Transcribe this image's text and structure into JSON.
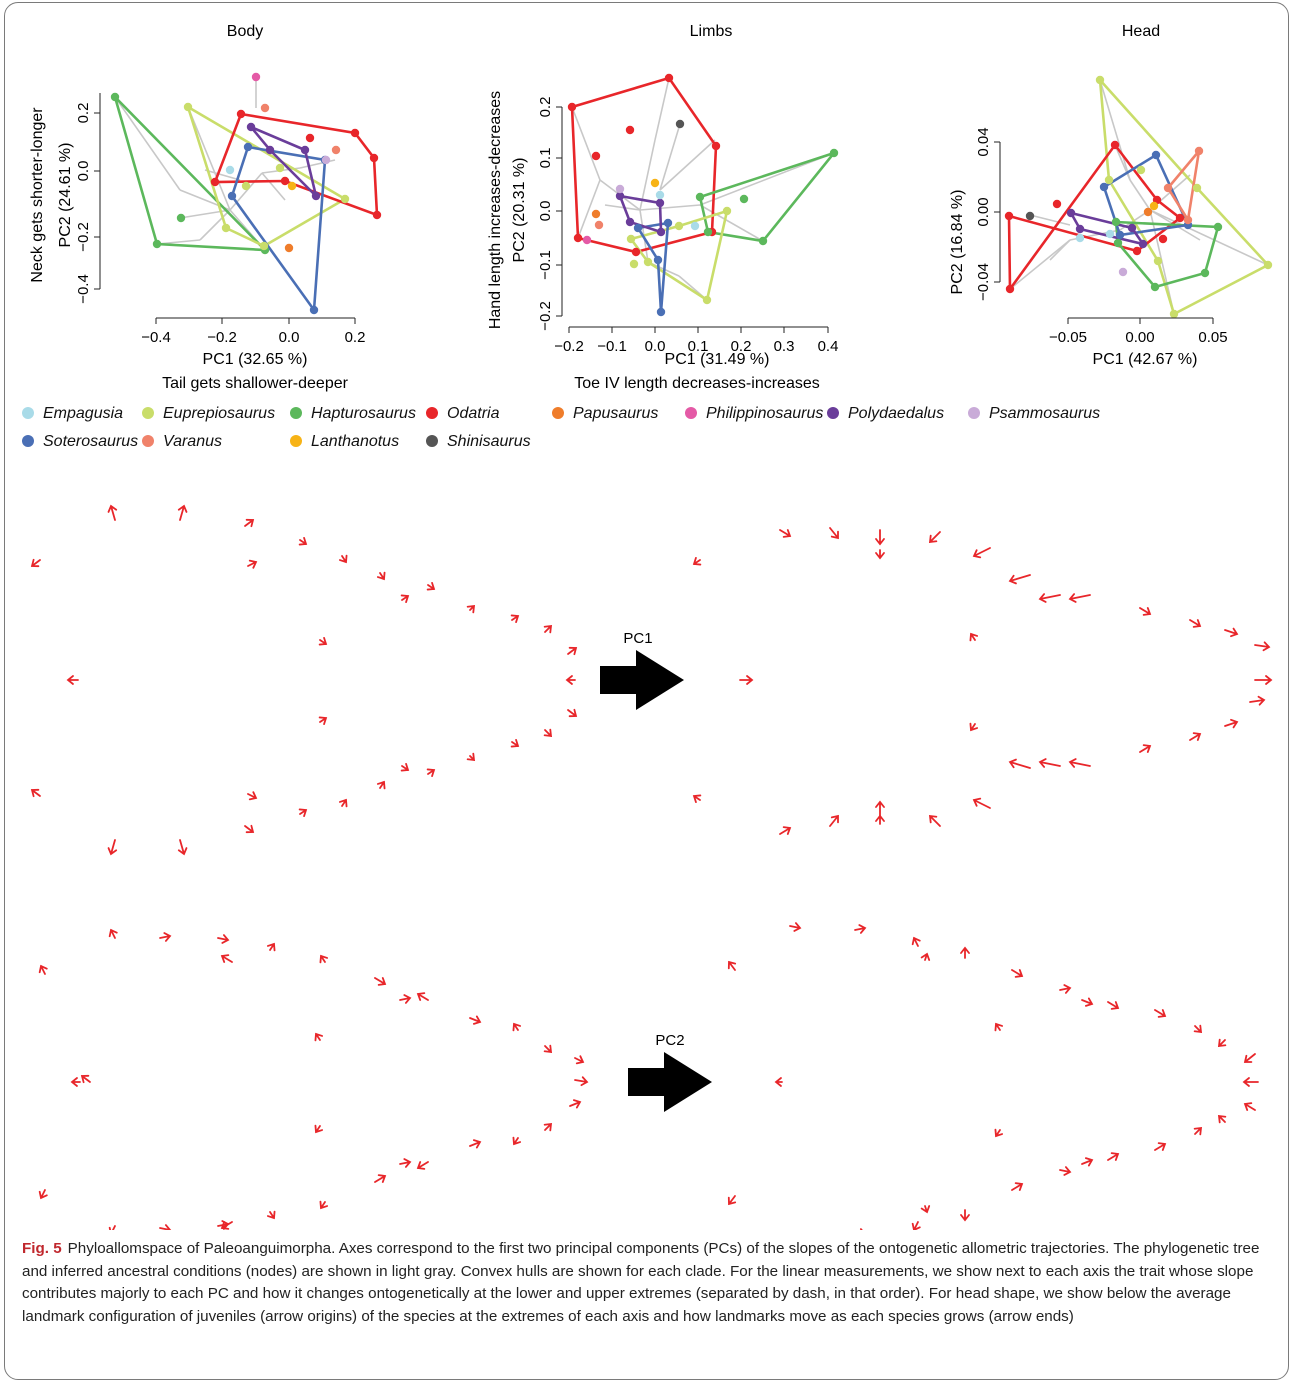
{
  "panels": [
    {
      "title": "Body",
      "xlabel": "PC1 (32.65 %)",
      "xtrait": "Tail gets shallower-deeper",
      "ylabel": "PC2 (24.61 %)",
      "ytrait": "Neck gets shorter-longer",
      "xticks": [
        "−0.4",
        "−0.2",
        "0.0",
        "0.2"
      ],
      "yticks": [
        "−0.4",
        "−0.2",
        "0.0",
        "0.2"
      ]
    },
    {
      "title": "Limbs",
      "xlabel": "PC1 (31.49 %)",
      "xtrait": "Toe IV length decreases-increases",
      "ylabel": "PC2 (20.31 %)",
      "ytrait": "Hand length increases-decreases",
      "xticks": [
        "−0.2",
        "−0.1",
        "0.0",
        "0.1",
        "0.2",
        "0.3",
        "0.4"
      ],
      "yticks": [
        "−0.2",
        "−0.1",
        "0.0",
        "0.1",
        "0.2"
      ]
    },
    {
      "title": "Head",
      "xlabel": "PC1 (42.67 %)",
      "xtrait": "",
      "ylabel": "PC2 (16.84 %)",
      "ytrait": "",
      "xticks": [
        "−0.05",
        "0.00",
        "0.05"
      ],
      "yticks": [
        "−0.04",
        "0.00",
        "0.04"
      ]
    }
  ],
  "legend": [
    {
      "name": "Empagusia",
      "color": "#a9dbe8"
    },
    {
      "name": "Euprepiosaurus",
      "color": "#c9dd6a"
    },
    {
      "name": "Hapturosaurus",
      "color": "#5cb85c"
    },
    {
      "name": "Odatria",
      "color": "#e8262a"
    },
    {
      "name": "Papusaurus",
      "color": "#ef7d2b"
    },
    {
      "name": "Philippinosaurus",
      "color": "#e45aa6"
    },
    {
      "name": "Polydaedalus",
      "color": "#6a3d9a"
    },
    {
      "name": "Psammosaurus",
      "color": "#c9abd8"
    },
    {
      "name": "Soterosaurus",
      "color": "#4a6fb5"
    },
    {
      "name": "Varanus",
      "color": "#f0826a"
    },
    {
      "name": "Lanthanotus",
      "color": "#f7b316"
    },
    {
      "name": "Shinisaurus",
      "color": "#555555"
    }
  ],
  "shape_labels": {
    "pc1": "PC1",
    "pc2": "PC2"
  },
  "colors": {
    "arrow": "#e8262a",
    "tree": "#c8c8c8",
    "big_arrow": "#000000"
  },
  "caption": {
    "label": "Fig. 5",
    "text": "Phyloallomspace of Paleoanguimorpha. Axes correspond to the first two principal components (PCs) of the slopes of the ontogenetic allometric trajectories. The phylogenetic tree and inferred ancestral conditions (nodes) are shown in light gray. Convex hulls are shown for each clade. For the linear measurements, we show next to each axis the trait whose slope contributes majorly to each PC and how it changes ontogenetically at the lower and upper extremes (separated by dash, in that order). For head shape, we show below the average landmark configuration of juveniles (arrow origins) of the species at the extremes of each axis and how landmarks move as each species grows (arrow ends)"
  }
}
